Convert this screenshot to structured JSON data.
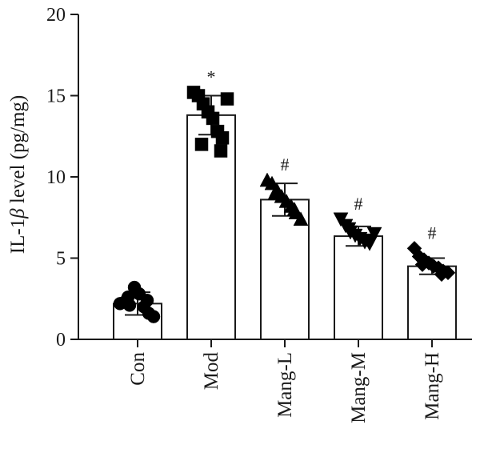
{
  "chart_data": {
    "type": "bar",
    "ylabel_prefix": "IL-1",
    "ylabel_greek": "β",
    "ylabel_suffix": " level (pg/mg)",
    "ylim": [
      0,
      20
    ],
    "yticks": [
      "0",
      "5",
      "10",
      "15",
      "20"
    ],
    "categories": [
      "Con",
      "Mod",
      "Mang-L",
      "Mang-M",
      "Mang-H"
    ],
    "values": [
      2.2,
      13.8,
      8.6,
      6.35,
      4.5
    ],
    "errors": [
      0.7,
      1.2,
      1.0,
      0.6,
      0.5
    ],
    "markers": [
      "circle",
      "square",
      "triangle-up",
      "triangle-down",
      "diamond"
    ],
    "significance": [
      "",
      "*",
      "#",
      "#",
      "#"
    ],
    "points": [
      [
        2.2,
        2.3,
        2.1,
        3.2,
        2.8,
        2.0,
        1.6,
        1.4,
        2.6,
        2.4
      ],
      [
        15.2,
        15.0,
        14.5,
        14.0,
        13.6,
        12.8,
        12.4,
        14.8,
        12.0,
        11.6
      ],
      [
        9.8,
        9.6,
        9.2,
        8.8,
        8.5,
        8.2,
        7.8,
        7.4,
        9.0,
        8.0
      ],
      [
        7.4,
        7.0,
        6.6,
        6.4,
        6.2,
        6.0,
        5.9,
        6.5,
        6.8,
        6.1
      ],
      [
        5.6,
        5.1,
        4.9,
        4.7,
        4.5,
        4.4,
        4.2,
        4.1,
        4.6,
        4.0
      ]
    ]
  }
}
